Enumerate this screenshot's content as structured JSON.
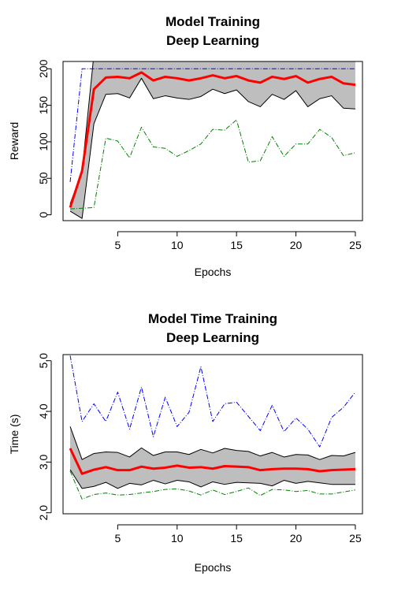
{
  "chart_data": [
    {
      "type": "line",
      "title": [
        "Model Training",
        "Deep Learning"
      ],
      "xlabel": "Epochs",
      "ylabel": "Reward",
      "xlim": [
        0.4,
        25.6
      ],
      "ylim": [
        -8,
        210
      ],
      "xticks": [
        5,
        10,
        15,
        20,
        25
      ],
      "yticks": [
        0,
        50,
        100,
        150,
        200
      ],
      "colors": {
        "mean": "#ff0000",
        "band": "#bebebe",
        "max": "#0000ff",
        "min": "#008000",
        "edge": "#000000"
      },
      "x": [
        1,
        2,
        3,
        4,
        5,
        6,
        7,
        8,
        9,
        10,
        11,
        12,
        13,
        14,
        15,
        16,
        17,
        18,
        19,
        20,
        21,
        22,
        23,
        24,
        25
      ],
      "band": {
        "upper": [
          15,
          60,
          220,
          220,
          220,
          220,
          220,
          220,
          220,
          220,
          220,
          220,
          220,
          220,
          220,
          220,
          220,
          220,
          220,
          220,
          220,
          220,
          220,
          220,
          220
        ],
        "lower": [
          5,
          -5,
          125,
          165,
          166,
          160,
          187,
          159,
          163,
          160,
          158,
          162,
          172,
          166,
          171,
          155,
          148,
          165,
          158,
          170,
          148,
          159,
          163,
          146,
          145
        ]
      },
      "series": [
        {
          "role": "mean",
          "values": [
            10,
            60,
            172,
            188,
            189,
            187,
            195,
            184,
            189,
            187,
            184,
            187,
            191,
            187,
            190,
            184,
            181,
            189,
            186,
            190,
            181,
            186,
            189,
            180,
            178
          ]
        },
        {
          "role": "max",
          "values": [
            45,
            200,
            200,
            200,
            200,
            200,
            200,
            200,
            200,
            200,
            200,
            200,
            200,
            200,
            200,
            200,
            200,
            200,
            200,
            200,
            200,
            200,
            200,
            200,
            200
          ]
        },
        {
          "role": "min",
          "values": [
            8,
            9,
            10,
            105,
            101,
            78,
            120,
            93,
            91,
            80,
            88,
            97,
            117,
            116,
            130,
            72,
            74,
            107,
            80,
            97,
            97,
            117,
            106,
            81,
            85
          ]
        }
      ]
    },
    {
      "type": "line",
      "title": [
        "Model Time Training",
        "Deep Learning"
      ],
      "xlabel": "Epochs",
      "ylabel": "Time (s)",
      "xlim": [
        0.4,
        25.6
      ],
      "ylim": [
        1.98,
        5.12
      ],
      "xticks": [
        5,
        10,
        15,
        20,
        25
      ],
      "yticks": [
        2.0,
        3.0,
        4.0,
        5.0
      ],
      "ytick_labels": [
        "2.0",
        "3.0",
        "4.0",
        "5.0"
      ],
      "colors": {
        "mean": "#ff0000",
        "band": "#bebebe",
        "max": "#0000ff",
        "min": "#008000",
        "edge": "#000000"
      },
      "x": [
        1,
        2,
        3,
        4,
        5,
        6,
        7,
        8,
        9,
        10,
        11,
        12,
        13,
        14,
        15,
        16,
        17,
        18,
        19,
        20,
        21,
        22,
        23,
        24,
        25
      ],
      "band": {
        "upper": [
          3.7,
          3.05,
          3.17,
          3.2,
          3.19,
          3.1,
          3.28,
          3.13,
          3.2,
          3.2,
          3.15,
          3.25,
          3.18,
          3.27,
          3.23,
          3.21,
          3.12,
          3.19,
          3.1,
          3.15,
          3.14,
          3.05,
          3.13,
          3.12,
          3.19
        ],
        "lower": [
          2.85,
          2.48,
          2.52,
          2.6,
          2.48,
          2.58,
          2.55,
          2.64,
          2.57,
          2.64,
          2.61,
          2.51,
          2.61,
          2.56,
          2.6,
          2.59,
          2.58,
          2.53,
          2.64,
          2.58,
          2.62,
          2.59,
          2.56,
          2.56,
          2.56
        ]
      },
      "series": [
        {
          "role": "mean",
          "values": [
            3.27,
            2.77,
            2.85,
            2.9,
            2.84,
            2.84,
            2.91,
            2.87,
            2.89,
            2.93,
            2.89,
            2.9,
            2.87,
            2.92,
            2.91,
            2.9,
            2.84,
            2.86,
            2.87,
            2.87,
            2.86,
            2.82,
            2.84,
            2.85,
            2.86
          ]
        },
        {
          "role": "max",
          "values": [
            5.1,
            3.8,
            4.15,
            3.8,
            4.38,
            3.65,
            4.48,
            3.5,
            4.28,
            3.7,
            3.98,
            4.88,
            3.8,
            4.15,
            4.18,
            3.9,
            3.62,
            4.12,
            3.6,
            3.87,
            3.65,
            3.3,
            3.88,
            4.08,
            4.38
          ]
        },
        {
          "role": "min",
          "values": [
            2.82,
            2.27,
            2.36,
            2.39,
            2.35,
            2.36,
            2.39,
            2.42,
            2.46,
            2.47,
            2.43,
            2.35,
            2.45,
            2.36,
            2.42,
            2.49,
            2.34,
            2.46,
            2.45,
            2.42,
            2.44,
            2.37,
            2.37,
            2.41,
            2.45
          ]
        }
      ]
    }
  ]
}
